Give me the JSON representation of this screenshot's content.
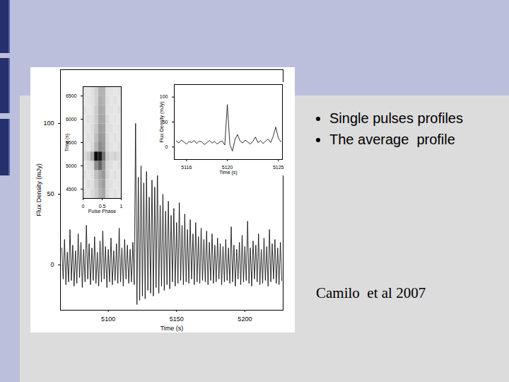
{
  "chart_data": [
    {
      "type": "line",
      "x_label": "Time (s)",
      "y_label": "Flux Density (mJy)",
      "color": "#000000",
      "xlim": [
        5065,
        5228
      ],
      "xticks": [
        5100,
        5150,
        5200
      ],
      "ylim": [
        -32,
        138
      ],
      "yticks": [
        0,
        50,
        100
      ],
      "x": [
        5066,
        5067,
        5068,
        5069,
        5070,
        5071,
        5072,
        5073,
        5074,
        5075,
        5076,
        5077,
        5078,
        5079,
        5080,
        5081,
        5082,
        5083,
        5084,
        5085,
        5086,
        5087,
        5088,
        5089,
        5090,
        5091,
        5092,
        5093,
        5094,
        5095,
        5096,
        5097,
        5098,
        5099,
        5100,
        5101,
        5102,
        5103,
        5104,
        5105,
        5106,
        5107,
        5108,
        5109,
        5110,
        5111,
        5112,
        5113,
        5114,
        5115,
        5116,
        5117,
        5118,
        5119,
        5120,
        5121,
        5122,
        5123,
        5124,
        5125,
        5126,
        5127,
        5128,
        5129,
        5130,
        5131,
        5132,
        5133,
        5134,
        5135,
        5136,
        5137,
        5138,
        5139,
        5140,
        5141,
        5142,
        5143,
        5144,
        5145,
        5146,
        5147,
        5148,
        5149,
        5150,
        5151,
        5152,
        5153,
        5154,
        5155,
        5156,
        5157,
        5158,
        5159,
        5160,
        5161,
        5162,
        5163,
        5164,
        5165,
        5166,
        5167,
        5168,
        5169,
        5170,
        5171,
        5172,
        5173,
        5174,
        5175,
        5176,
        5177,
        5178,
        5179,
        5180,
        5181,
        5182,
        5183,
        5184,
        5185,
        5186,
        5187,
        5188,
        5189,
        5190,
        5191,
        5192,
        5193,
        5194,
        5195,
        5196,
        5197,
        5198,
        5199,
        5200,
        5201,
        5202,
        5203,
        5204,
        5205,
        5206,
        5207,
        5208,
        5209,
        5210,
        5211,
        5212,
        5213,
        5214,
        5215,
        5216,
        5217,
        5218,
        5219,
        5220,
        5221,
        5222,
        5223,
        5224,
        5225,
        5226,
        5227
      ],
      "values": [
        12,
        -10,
        18,
        -14,
        9,
        -12,
        25,
        -11,
        14,
        -15,
        10,
        -13,
        22,
        -9,
        16,
        -16,
        11,
        -12,
        28,
        -10,
        15,
        -14,
        12,
        -11,
        20,
        -13,
        9,
        -15,
        17,
        -12,
        24,
        -10,
        13,
        -16,
        11,
        -12,
        19,
        -14,
        10,
        -11,
        15,
        -13,
        26,
        -12,
        12,
        -15,
        18,
        -10,
        14,
        -13,
        11,
        -12,
        16,
        -14,
        100,
        -28,
        62,
        -25,
        70,
        -22,
        58,
        -24,
        66,
        -18,
        48,
        -20,
        60,
        -22,
        55,
        -16,
        68,
        -20,
        42,
        -15,
        50,
        -18,
        38,
        -14,
        45,
        -17,
        35,
        -12,
        40,
        -15,
        30,
        -13,
        44,
        -11,
        28,
        -14,
        36,
        -12,
        25,
        -13,
        32,
        -10,
        22,
        -14,
        30,
        -12,
        20,
        -13,
        26,
        -11,
        18,
        -12,
        24,
        -14,
        16,
        -11,
        22,
        -13,
        14,
        -12,
        19,
        -10,
        15,
        -14,
        13,
        -12,
        18,
        -11,
        12,
        -13,
        27,
        -12,
        14,
        -15,
        11,
        -10,
        16,
        -14,
        21,
        -12,
        13,
        -11,
        31,
        -13,
        12,
        -15,
        17,
        -10,
        14,
        -12,
        22,
        -14,
        11,
        -13,
        19,
        -11,
        13,
        -15,
        25,
        -12,
        15,
        -10,
        18,
        -13,
        12,
        -14,
        16,
        -11
      ]
    },
    {
      "type": "heatmap",
      "x_label": "Pulse Phase",
      "y_label": "Time (s)",
      "xlim": [
        0,
        1
      ],
      "xticks": [
        0,
        0.5,
        1
      ],
      "ylim": [
        4300,
        6700
      ],
      "yticks": [
        4500,
        5000,
        5500,
        6000,
        6500
      ],
      "x_edges": [
        0,
        0.1,
        0.2,
        0.3,
        0.4,
        0.5,
        0.6,
        0.7,
        0.8,
        0.9,
        1
      ],
      "y_edges": [
        4300,
        4500,
        4700,
        4900,
        5100,
        5300,
        5500,
        5700,
        5900,
        6100,
        6300,
        6500,
        6700
      ],
      "zlim": [
        0,
        1
      ],
      "cells": [
        [
          0.12,
          0.1,
          0.14,
          0.2,
          0.3,
          0.35,
          0.15,
          0.1,
          0.12,
          0.1
        ],
        [
          0.1,
          0.13,
          0.12,
          0.22,
          0.32,
          0.38,
          0.14,
          0.12,
          0.1,
          0.11
        ],
        [
          0.13,
          0.1,
          0.12,
          0.25,
          0.35,
          0.4,
          0.16,
          0.1,
          0.13,
          0.1
        ],
        [
          0.1,
          0.12,
          0.15,
          0.45,
          0.6,
          0.42,
          0.15,
          0.12,
          0.1,
          0.12
        ],
        [
          0.15,
          0.2,
          0.35,
          0.95,
          0.9,
          0.55,
          0.2,
          0.15,
          0.18,
          0.14
        ],
        [
          0.12,
          0.1,
          0.14,
          0.3,
          0.45,
          0.4,
          0.15,
          0.11,
          0.1,
          0.12
        ],
        [
          0.1,
          0.12,
          0.12,
          0.25,
          0.4,
          0.38,
          0.14,
          0.1,
          0.12,
          0.1
        ],
        [
          0.11,
          0.1,
          0.13,
          0.22,
          0.38,
          0.36,
          0.13,
          0.12,
          0.1,
          0.11
        ],
        [
          0.1,
          0.12,
          0.12,
          0.2,
          0.35,
          0.34,
          0.14,
          0.1,
          0.11,
          0.1
        ],
        [
          0.12,
          0.1,
          0.11,
          0.2,
          0.34,
          0.32,
          0.12,
          0.11,
          0.1,
          0.12
        ],
        [
          0.1,
          0.11,
          0.12,
          0.18,
          0.32,
          0.3,
          0.13,
          0.1,
          0.12,
          0.1
        ],
        [
          0.11,
          0.1,
          0.12,
          0.18,
          0.3,
          0.3,
          0.12,
          0.11,
          0.1,
          0.11
        ]
      ]
    },
    {
      "type": "line",
      "x_label": "Time (s)",
      "y_label": "Flux Density (mJy)",
      "color": "#000000",
      "xlim": [
        5114.8,
        5125.4
      ],
      "xticks": [
        5116,
        5120,
        5125
      ],
      "ylim": [
        -25,
        125
      ],
      "yticks": [
        0,
        50,
        100
      ],
      "x": [
        5115,
        5115.25,
        5115.5,
        5115.75,
        5116,
        5116.25,
        5116.5,
        5116.75,
        5117,
        5117.25,
        5117.5,
        5117.75,
        5118,
        5118.25,
        5118.5,
        5118.75,
        5119,
        5119.25,
        5119.5,
        5119.75,
        5120,
        5120.25,
        5120.5,
        5120.75,
        5121,
        5121.25,
        5121.5,
        5121.75,
        5122,
        5122.25,
        5122.5,
        5122.75,
        5123,
        5123.25,
        5123.5,
        5123.75,
        5124,
        5124.25,
        5124.5,
        5124.75,
        5125,
        5125.25
      ],
      "values": [
        12,
        8,
        14,
        10,
        6,
        11,
        9,
        13,
        7,
        12,
        10,
        5,
        9,
        13,
        8,
        11,
        6,
        10,
        12,
        4,
        85,
        5,
        -8,
        15,
        25,
        12,
        8,
        14,
        10,
        6,
        11,
        20,
        9,
        13,
        7,
        12,
        16,
        9,
        22,
        40,
        18,
        10
      ]
    }
  ],
  "slide": {
    "bullets": [
      "Single pulses profiles",
      "The average  profile"
    ],
    "citation": "Camilo  et al 2007"
  }
}
